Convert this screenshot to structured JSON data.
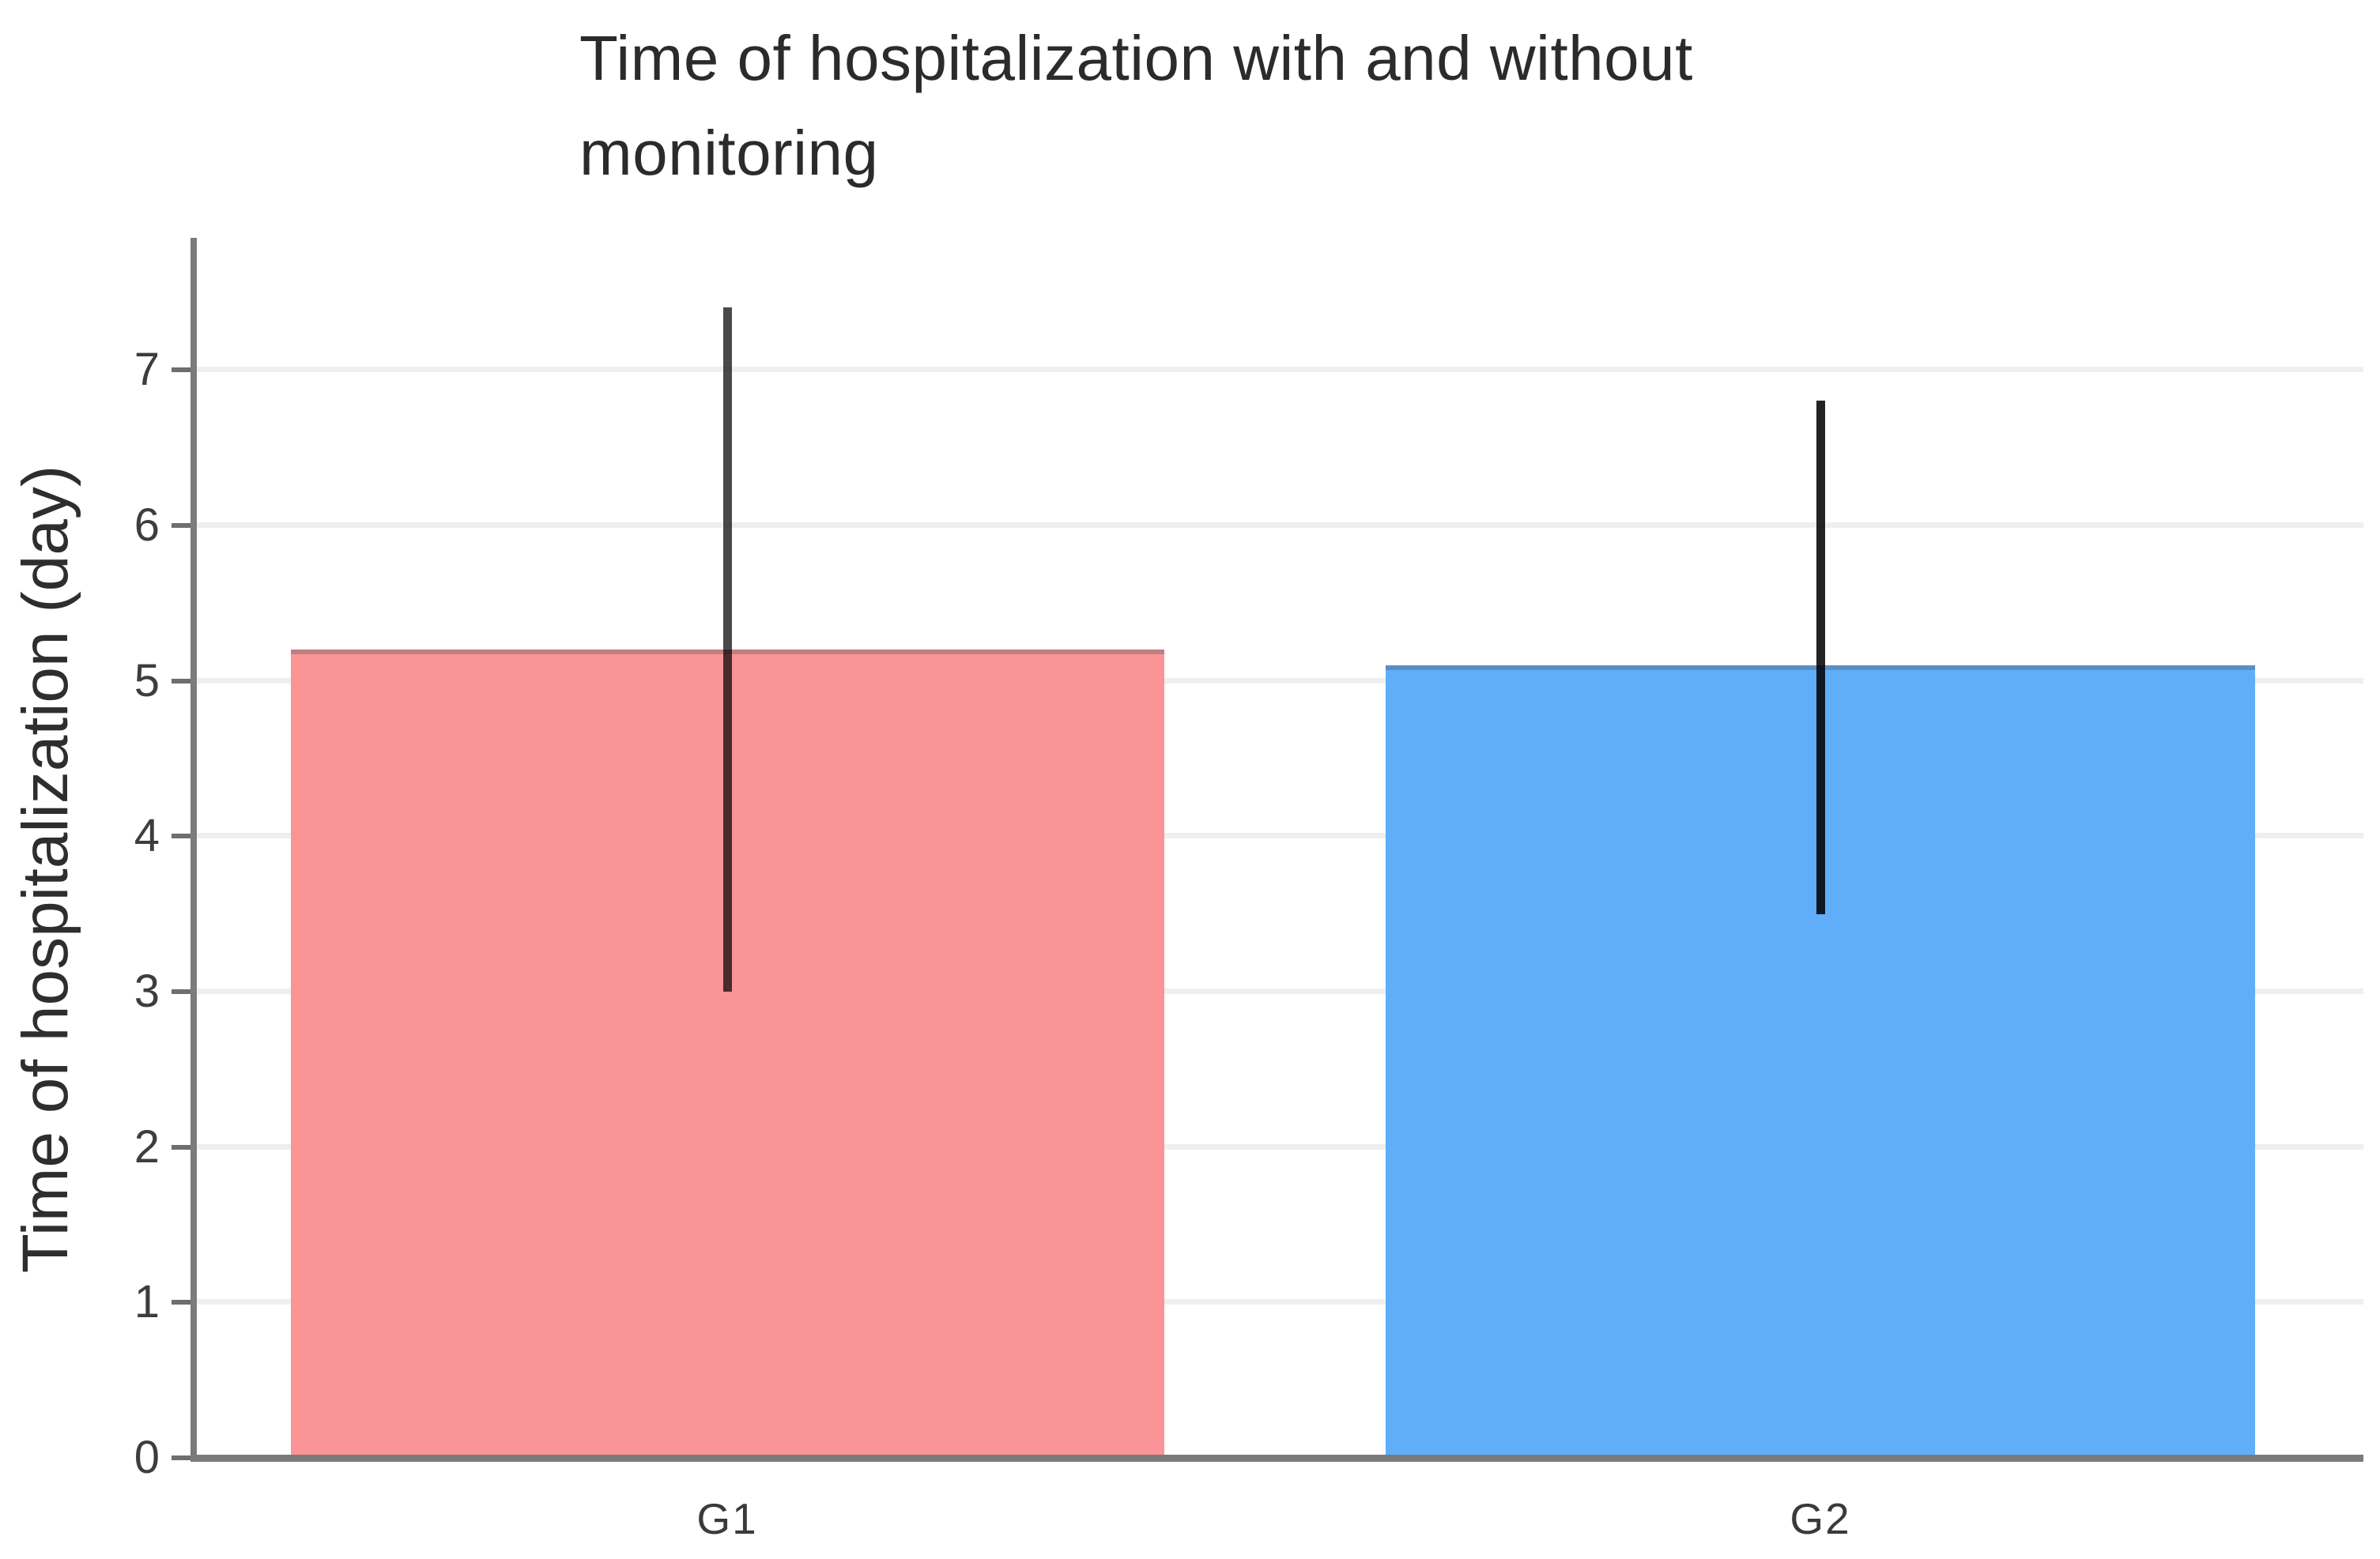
{
  "chart_data": {
    "type": "bar",
    "title": "Time of hospitalization with and without monitoring",
    "ylabel": "Time of hospitalization (day)",
    "xlabel": "",
    "categories": [
      "G1",
      "G2"
    ],
    "values": [
      5.2,
      5.1
    ],
    "error_low": [
      3.0,
      3.5
    ],
    "error_high": [
      7.4,
      6.8
    ],
    "bar_colors": [
      "#fa9497",
      "#60aefa"
    ],
    "error_bar_colors": [
      "#4a4a4a",
      "#242424"
    ],
    "y_ticks": [
      0,
      1,
      2,
      3,
      4,
      5,
      6,
      7
    ],
    "ylim": [
      0,
      7.85
    ],
    "grid": true,
    "legend": false,
    "axis_color": "#7b7b7b",
    "grid_color": "#efefef",
    "background_color": "#ffffff"
  }
}
